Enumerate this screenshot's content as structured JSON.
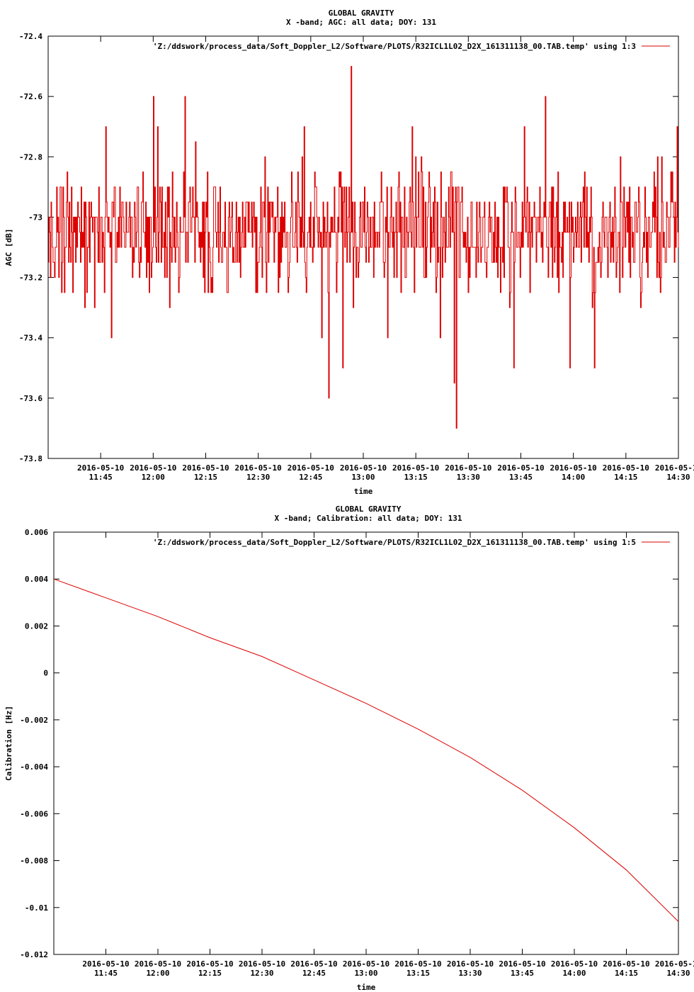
{
  "colors": {
    "series": "#dd0000",
    "axis": "#000000",
    "background": "#ffffff"
  },
  "chart_data": [
    {
      "type": "line",
      "title": "GLOBAL GRAVITY",
      "subtitle": "X -band; AGC: all data; DOY: 131",
      "xlabel": "time",
      "ylabel": "AGC [dB]",
      "ylim": [
        -73.8,
        -72.4
      ],
      "yticks": [
        -73.8,
        -73.6,
        -73.4,
        -73.2,
        -73.0,
        -72.8,
        -72.6,
        -72.4
      ],
      "ytick_labels": [
        "-73.8",
        "-73.6",
        "-73.4",
        "-73.2",
        "-73",
        "-72.8",
        "-72.6",
        "-72.4"
      ],
      "xlim_minutes": [
        690,
        870
      ],
      "xticks_minutes": [
        705,
        720,
        735,
        750,
        765,
        780,
        795,
        810,
        825,
        840,
        855,
        870
      ],
      "xtick_date": "2016-05-10",
      "xtick_times": [
        "11:45",
        "12:00",
        "12:15",
        "12:30",
        "12:45",
        "13:00",
        "13:15",
        "13:30",
        "13:45",
        "14:00",
        "14:15",
        "14:30"
      ],
      "grid": false,
      "legend_position": "top-right",
      "series": [
        {
          "name": "'Z:/ddswork/process_data/Soft_Doppler_L2/Software/PLOTS/R32ICL1L02_D2X_161311138_00.TAB.temp' using 1:3",
          "base_mean": -73.05,
          "noise_amplitude": 0.15,
          "spikes": [
            {
              "x": 720.0,
              "y": -72.6
            },
            {
              "x": 721.2,
              "y": -72.7
            },
            {
              "x": 729.0,
              "y": -72.6
            },
            {
              "x": 706.5,
              "y": -72.7
            },
            {
              "x": 708.0,
              "y": -73.4
            },
            {
              "x": 732.0,
              "y": -72.75
            },
            {
              "x": 763.0,
              "y": -72.7
            },
            {
              "x": 768.0,
              "y": -73.4
            },
            {
              "x": 770.0,
              "y": -73.6
            },
            {
              "x": 774.0,
              "y": -73.5
            },
            {
              "x": 776.5,
              "y": -72.5
            },
            {
              "x": 787.0,
              "y": -73.4
            },
            {
              "x": 794.0,
              "y": -72.7
            },
            {
              "x": 802.0,
              "y": -73.4
            },
            {
              "x": 806.0,
              "y": -73.55
            },
            {
              "x": 806.5,
              "y": -73.7
            },
            {
              "x": 823.0,
              "y": -73.5
            },
            {
              "x": 826.0,
              "y": -72.7
            },
            {
              "x": 832.0,
              "y": -72.6
            },
            {
              "x": 839.0,
              "y": -73.5
            },
            {
              "x": 846.0,
              "y": -73.5
            },
            {
              "x": 869.5,
              "y": -72.7
            }
          ]
        }
      ]
    },
    {
      "type": "line",
      "title": "GLOBAL GRAVITY",
      "subtitle": "X -band; Calibration: all data; DOY: 131",
      "xlabel": "time",
      "ylabel": "Calibration [Hz]",
      "ylim": [
        -0.012,
        0.006
      ],
      "yticks": [
        -0.012,
        -0.01,
        -0.008,
        -0.006,
        -0.004,
        -0.002,
        0.0,
        0.002,
        0.004,
        0.006
      ],
      "ytick_labels": [
        "-0.012",
        "-0.01",
        "-0.008",
        "-0.006",
        "-0.004",
        "-0.002",
        "0",
        "0.002",
        "0.004",
        "0.006"
      ],
      "xlim_minutes": [
        690,
        870
      ],
      "xticks_minutes": [
        705,
        720,
        735,
        750,
        765,
        780,
        795,
        810,
        825,
        840,
        855,
        870
      ],
      "xtick_date": "2016-05-10",
      "xtick_times": [
        "11:45",
        "12:00",
        "12:15",
        "12:30",
        "12:45",
        "13:00",
        "13:15",
        "13:30",
        "13:45",
        "14:00",
        "14:15",
        "14:30"
      ],
      "grid": false,
      "legend_position": "top-right",
      "series": [
        {
          "name": "'Z:/ddswork/process_data/Soft_Doppler_L2/Software/PLOTS/R32ICL1L02_D2X_161311138_00.TAB.temp' using 1:5",
          "x_minutes": [
            690,
            705,
            720,
            735,
            750,
            765,
            780,
            795,
            810,
            825,
            840,
            855,
            870
          ],
          "values": [
            0.004,
            0.0032,
            0.0024,
            0.0015,
            0.0007,
            -0.0003,
            -0.0013,
            -0.0024,
            -0.0036,
            -0.005,
            -0.0066,
            -0.0084,
            -0.0106
          ]
        }
      ]
    }
  ]
}
